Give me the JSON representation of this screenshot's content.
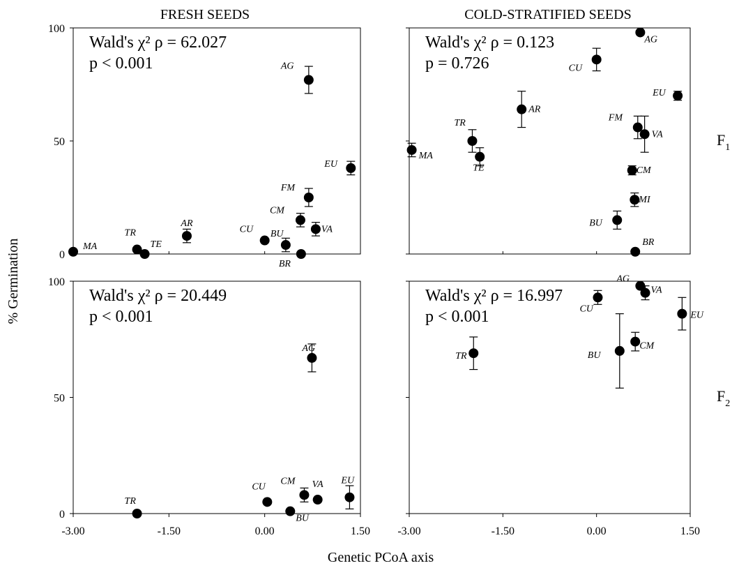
{
  "column_headers": [
    "FRESH SEEDS",
    "COLD-STRATIFIED SEEDS"
  ],
  "row_labels": [
    {
      "main": "F",
      "sub": "1"
    },
    {
      "main": "F",
      "sub": "2"
    }
  ],
  "xlabel": "Genetic PCoA axis",
  "ylabel": "% Germination",
  "chart_data": [
    {
      "type": "scatter",
      "column": "FRESH SEEDS",
      "row": "F1",
      "stat_line1": "Wald's χ² ρ = 62.027",
      "stat_line2": "p < 0.001",
      "xlim": [
        -3.0,
        1.5
      ],
      "ylim": [
        0,
        100
      ],
      "xticks": [
        "-3.00",
        "-1.50",
        "0.00",
        "1.50"
      ],
      "yticks": [
        "0",
        "50",
        "100"
      ],
      "points": [
        {
          "label": "MA",
          "x": -3.0,
          "y": 1,
          "err": 0
        },
        {
          "label": "TR",
          "x": -2.0,
          "y": 2,
          "err": 0
        },
        {
          "label": "TE",
          "x": -1.88,
          "y": 0,
          "err": 0
        },
        {
          "label": "AR",
          "x": -1.22,
          "y": 8,
          "err": 3
        },
        {
          "label": "CU",
          "x": 0.0,
          "y": 6,
          "err": 0
        },
        {
          "label": "BU",
          "x": 0.33,
          "y": 4,
          "err": 3
        },
        {
          "label": "BR",
          "x": 0.57,
          "y": 0,
          "err": 0
        },
        {
          "label": "CM",
          "x": 0.56,
          "y": 15,
          "err": 3
        },
        {
          "label": "FM",
          "x": 0.69,
          "y": 25,
          "err": 4
        },
        {
          "label": "VA",
          "x": 0.8,
          "y": 11,
          "err": 3
        },
        {
          "label": "AG",
          "x": 0.69,
          "y": 77,
          "err": 6
        },
        {
          "label": "EU",
          "x": 1.35,
          "y": 38,
          "err": 3
        }
      ]
    },
    {
      "type": "scatter",
      "column": "COLD-STRATIFIED SEEDS",
      "row": "F1",
      "stat_line1": "Wald's χ² ρ = 0.123",
      "stat_line2": "p = 0.726",
      "xlim": [
        -3.0,
        1.5
      ],
      "ylim": [
        0,
        100
      ],
      "xticks": [
        "-3.00",
        "-1.50",
        "0.00",
        "1.50"
      ],
      "yticks": [],
      "points": [
        {
          "label": "MA",
          "x": -2.96,
          "y": 46,
          "err": 3
        },
        {
          "label": "TR",
          "x": -1.99,
          "y": 50,
          "err": 5
        },
        {
          "label": "TE",
          "x": -1.87,
          "y": 43,
          "err": 4
        },
        {
          "label": "AR",
          "x": -1.2,
          "y": 64,
          "err": 8
        },
        {
          "label": "CU",
          "x": 0.0,
          "y": 86,
          "err": 5
        },
        {
          "label": "AG",
          "x": 0.7,
          "y": 98,
          "err": 0
        },
        {
          "label": "EU",
          "x": 1.3,
          "y": 70,
          "err": 2
        },
        {
          "label": "FM",
          "x": 0.66,
          "y": 56,
          "err": 5
        },
        {
          "label": "VA",
          "x": 0.77,
          "y": 53,
          "err": 8
        },
        {
          "label": "CM",
          "x": 0.57,
          "y": 37,
          "err": 2
        },
        {
          "label": "MI",
          "x": 0.61,
          "y": 24,
          "err": 3
        },
        {
          "label": "BU",
          "x": 0.33,
          "y": 15,
          "err": 4
        },
        {
          "label": "BR",
          "x": 0.62,
          "y": 1,
          "err": 0
        }
      ]
    },
    {
      "type": "scatter",
      "column": "FRESH SEEDS",
      "row": "F2",
      "stat_line1": "Wald's χ² ρ = 20.449",
      "stat_line2": "p < 0.001",
      "xlim": [
        -3.0,
        1.5
      ],
      "ylim": [
        0,
        100
      ],
      "xticks": [
        "-3.00",
        "-1.50",
        "0.00",
        "1.50"
      ],
      "yticks": [
        "0",
        "50",
        "100"
      ],
      "points": [
        {
          "label": "TR",
          "x": -2.0,
          "y": 0,
          "err": 0
        },
        {
          "label": "CU",
          "x": 0.04,
          "y": 5,
          "err": 0
        },
        {
          "label": "BU",
          "x": 0.4,
          "y": 1,
          "err": 0
        },
        {
          "label": "CM",
          "x": 0.62,
          "y": 8,
          "err": 3
        },
        {
          "label": "VA",
          "x": 0.83,
          "y": 6,
          "err": 0
        },
        {
          "label": "AG",
          "x": 0.74,
          "y": 67,
          "err": 6
        },
        {
          "label": "EU",
          "x": 1.33,
          "y": 7,
          "err": 5
        }
      ]
    },
    {
      "type": "scatter",
      "column": "COLD-STRATIFIED SEEDS",
      "row": "F2",
      "stat_line1": "Wald's χ² ρ = 16.997",
      "stat_line2": "p < 0.001",
      "xlim": [
        -3.0,
        1.5
      ],
      "ylim": [
        0,
        100
      ],
      "xticks": [
        "-3.00",
        "-1.50",
        "0.00",
        "1.50"
      ],
      "yticks": [],
      "points": [
        {
          "label": "TR",
          "x": -1.97,
          "y": 69,
          "err": 7
        },
        {
          "label": "CU",
          "x": 0.02,
          "y": 93,
          "err": 3
        },
        {
          "label": "AG",
          "x": 0.7,
          "y": 98,
          "err": 0
        },
        {
          "label": "VA",
          "x": 0.78,
          "y": 95,
          "err": 3
        },
        {
          "label": "EU",
          "x": 1.37,
          "y": 86,
          "err": 7
        },
        {
          "label": "BU",
          "x": 0.37,
          "y": 70,
          "err": 16
        },
        {
          "label": "CM",
          "x": 0.62,
          "y": 74,
          "err": 4
        }
      ]
    }
  ]
}
